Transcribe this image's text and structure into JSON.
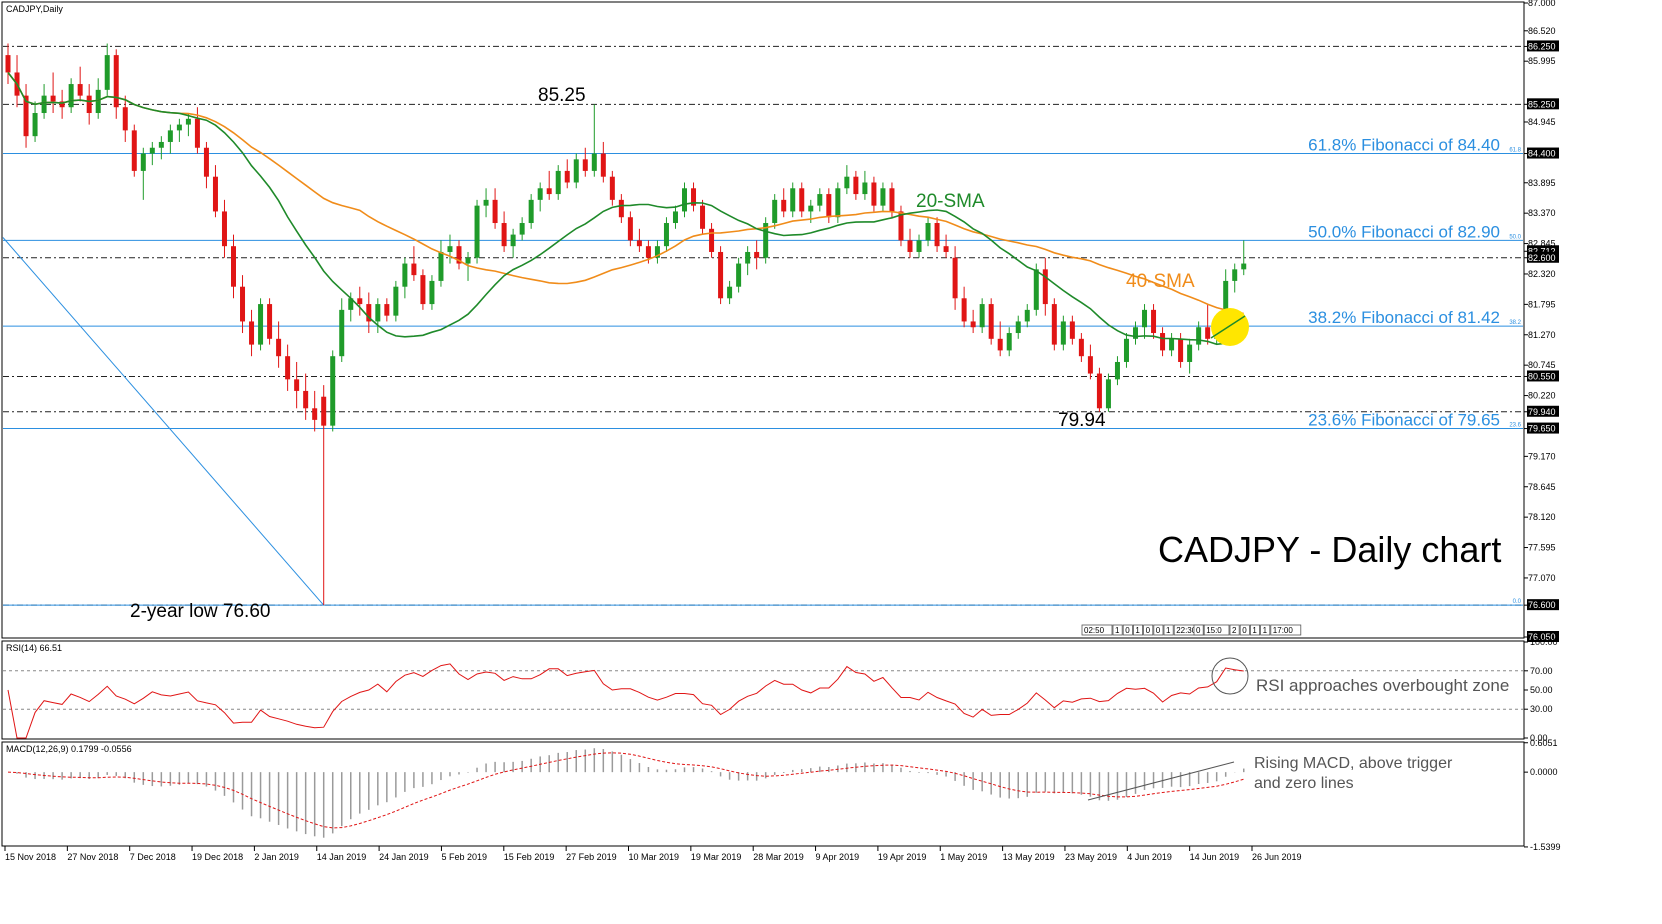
{
  "chart_data": [
    {
      "type": "candlestick",
      "panel": "price",
      "symbol_label": "CADJPY,Daily",
      "title": "CADJPY - Daily chart",
      "ylim": [
        76.05,
        87.0
      ],
      "y_ticks": [
        "87.000",
        "86.520",
        "86.250",
        "85.995",
        "85.250",
        "84.945",
        "84.400",
        "83.895",
        "83.370",
        "82.845",
        "82.712",
        "82.600",
        "82.320",
        "81.795",
        "81.270",
        "80.745",
        "80.550",
        "80.220",
        "79.940",
        "79.650",
        "79.170",
        "78.645",
        "78.120",
        "77.595",
        "77.070",
        "76.600",
        "76.050"
      ],
      "highlight_ticks": [
        "86.250",
        "85.250",
        "84.400",
        "82.712",
        "82.600",
        "80.550",
        "79.940",
        "79.650",
        "76.600",
        "76.050"
      ],
      "x_labels": [
        "15 Nov 2018",
        "27 Nov 2018",
        "7 Dec 2018",
        "19 Dec 2018",
        "2 Jan 2019",
        "14 Jan 2019",
        "24 Jan 2019",
        "5 Feb 2019",
        "15 Feb 2019",
        "27 Feb 2019",
        "10 Mar 2019",
        "19 Mar 2019",
        "28 Mar 2019",
        "9 Apr 2019",
        "19 Apr 2019",
        "1 May 2019",
        "13 May 2019",
        "23 May 2019",
        "4 Jun 2019",
        "14 Jun 2019",
        "26 Jun 2019"
      ],
      "horizontal_levels": [
        86.25,
        85.25,
        84.4,
        82.6,
        80.55,
        79.94,
        76.6
      ],
      "fibonacci": [
        {
          "level": 84.4,
          "label": "61.8% Fibonacci of 84.40",
          "tag": "61.8"
        },
        {
          "level": 82.9,
          "label": "50.0% Fibonacci of 82.90",
          "tag": "50.0"
        },
        {
          "level": 81.42,
          "label": "38.2% Fibonacci of 81.42",
          "tag": "38.2"
        },
        {
          "level": 79.65,
          "label": "23.6% Fibonacci of 79.65",
          "tag": "23.6"
        },
        {
          "level": 76.6,
          "label": "",
          "tag": "0.0"
        }
      ],
      "series": [
        {
          "name": "20-SMA",
          "color": "#1f8a2a"
        },
        {
          "name": "40-SMA",
          "color": "#f08c1a"
        }
      ],
      "annotations": {
        "high": "85.25",
        "low_may": "79.94",
        "low_jan": "2-year low 76.60"
      },
      "colors": {
        "bull": "#1f9b2a",
        "bear": "#e01515",
        "fib": "#2b8fe0",
        "marker": "#ffe600"
      },
      "candles": [
        [
          86.1,
          86.3,
          85.6,
          85.8
        ],
        [
          85.8,
          86.1,
          85.2,
          85.4
        ],
        [
          85.4,
          85.6,
          84.5,
          84.7
        ],
        [
          84.7,
          85.3,
          84.6,
          85.1
        ],
        [
          85.1,
          85.6,
          85.0,
          85.4
        ],
        [
          85.4,
          85.8,
          85.1,
          85.3
        ],
        [
          85.3,
          85.5,
          85.0,
          85.2
        ],
        [
          85.2,
          85.7,
          85.1,
          85.6
        ],
        [
          85.6,
          85.9,
          85.3,
          85.4
        ],
        [
          85.4,
          85.6,
          84.9,
          85.1
        ],
        [
          85.1,
          85.7,
          85.0,
          85.5
        ],
        [
          85.5,
          86.3,
          85.4,
          86.1
        ],
        [
          86.1,
          86.2,
          85.0,
          85.2
        ],
        [
          85.2,
          85.4,
          84.6,
          84.8
        ],
        [
          84.8,
          84.9,
          84.0,
          84.1
        ],
        [
          84.1,
          84.5,
          83.6,
          84.4
        ],
        [
          84.4,
          84.6,
          84.2,
          84.5
        ],
        [
          84.5,
          84.7,
          84.3,
          84.6
        ],
        [
          84.6,
          84.9,
          84.4,
          84.8
        ],
        [
          84.8,
          85.0,
          84.6,
          84.9
        ],
        [
          84.9,
          85.1,
          84.7,
          85.0
        ],
        [
          85.0,
          85.2,
          84.4,
          84.5
        ],
        [
          84.5,
          84.6,
          83.8,
          84.0
        ],
        [
          84.0,
          84.2,
          83.3,
          83.4
        ],
        [
          83.4,
          83.6,
          82.6,
          82.8
        ],
        [
          82.8,
          83.0,
          81.9,
          82.1
        ],
        [
          82.1,
          82.3,
          81.3,
          81.5
        ],
        [
          81.5,
          81.7,
          80.9,
          81.1
        ],
        [
          81.1,
          81.9,
          81.0,
          81.8
        ],
        [
          81.8,
          81.9,
          81.1,
          81.2
        ],
        [
          81.2,
          81.5,
          80.7,
          80.9
        ],
        [
          80.9,
          81.1,
          80.3,
          80.5
        ],
        [
          80.5,
          80.8,
          80.0,
          80.3
        ],
        [
          80.3,
          80.6,
          79.8,
          80.0
        ],
        [
          80.0,
          80.3,
          79.6,
          79.8
        ],
        [
          80.2,
          80.4,
          76.6,
          79.7
        ],
        [
          79.7,
          81.0,
          79.6,
          80.9
        ],
        [
          80.9,
          81.9,
          80.8,
          81.7
        ],
        [
          81.7,
          82.0,
          81.5,
          81.9
        ],
        [
          81.9,
          82.1,
          81.6,
          81.8
        ],
        [
          81.8,
          82.0,
          81.3,
          81.5
        ],
        [
          81.5,
          81.9,
          81.3,
          81.8
        ],
        [
          81.8,
          81.9,
          81.5,
          81.6
        ],
        [
          81.6,
          82.2,
          81.5,
          82.1
        ],
        [
          82.1,
          82.6,
          81.9,
          82.5
        ],
        [
          82.5,
          82.8,
          82.2,
          82.3
        ],
        [
          82.3,
          82.4,
          81.7,
          81.8
        ],
        [
          81.8,
          82.3,
          81.7,
          82.2
        ],
        [
          82.2,
          82.9,
          82.1,
          82.7
        ],
        [
          82.7,
          83.0,
          82.5,
          82.8
        ],
        [
          82.8,
          82.9,
          82.4,
          82.5
        ],
        [
          82.5,
          82.7,
          82.2,
          82.6
        ],
        [
          82.6,
          83.6,
          82.5,
          83.5
        ],
        [
          83.5,
          83.8,
          83.3,
          83.6
        ],
        [
          83.6,
          83.8,
          83.1,
          83.2
        ],
        [
          83.2,
          83.4,
          82.7,
          82.8
        ],
        [
          82.8,
          83.1,
          82.6,
          83.0
        ],
        [
          83.0,
          83.3,
          82.9,
          83.2
        ],
        [
          83.2,
          83.7,
          83.1,
          83.6
        ],
        [
          83.6,
          83.9,
          83.4,
          83.8
        ],
        [
          83.8,
          84.1,
          83.6,
          83.7
        ],
        [
          83.7,
          84.2,
          83.6,
          84.1
        ],
        [
          84.1,
          84.3,
          83.8,
          83.9
        ],
        [
          83.9,
          84.4,
          83.8,
          84.3
        ],
        [
          84.3,
          84.5,
          84.0,
          84.1
        ],
        [
          84.1,
          85.25,
          84.0,
          84.4
        ],
        [
          84.4,
          84.6,
          83.9,
          84.0
        ],
        [
          84.0,
          84.1,
          83.5,
          83.6
        ],
        [
          83.6,
          83.7,
          83.2,
          83.3
        ],
        [
          83.3,
          83.4,
          82.8,
          82.9
        ],
        [
          82.9,
          83.1,
          82.7,
          82.8
        ],
        [
          82.8,
          82.9,
          82.5,
          82.6
        ],
        [
          82.6,
          82.9,
          82.5,
          82.8
        ],
        [
          82.8,
          83.3,
          82.7,
          83.2
        ],
        [
          83.2,
          83.5,
          83.1,
          83.4
        ],
        [
          83.4,
          83.9,
          83.3,
          83.8
        ],
        [
          83.8,
          83.9,
          83.4,
          83.5
        ],
        [
          83.5,
          83.6,
          83.0,
          83.1
        ],
        [
          83.1,
          83.2,
          82.6,
          82.7
        ],
        [
          82.7,
          82.8,
          81.8,
          81.9
        ],
        [
          81.9,
          82.2,
          81.8,
          82.1
        ],
        [
          82.1,
          82.6,
          82.0,
          82.5
        ],
        [
          82.5,
          82.8,
          82.3,
          82.7
        ],
        [
          82.7,
          82.9,
          82.4,
          82.6
        ],
        [
          82.6,
          83.3,
          82.5,
          83.2
        ],
        [
          83.2,
          83.7,
          83.1,
          83.6
        ],
        [
          83.6,
          83.8,
          83.3,
          83.4
        ],
        [
          83.4,
          83.9,
          83.3,
          83.8
        ],
        [
          83.8,
          83.9,
          83.3,
          83.4
        ],
        [
          83.4,
          83.6,
          83.2,
          83.5
        ],
        [
          83.5,
          83.8,
          83.4,
          83.7
        ],
        [
          83.7,
          83.8,
          83.2,
          83.3
        ],
        [
          83.3,
          83.9,
          83.2,
          83.8
        ],
        [
          83.8,
          84.2,
          83.7,
          84.0
        ],
        [
          84.0,
          84.1,
          83.6,
          83.7
        ],
        [
          83.7,
          84.1,
          83.6,
          83.9
        ],
        [
          83.9,
          84.0,
          83.4,
          83.5
        ],
        [
          83.5,
          83.9,
          83.4,
          83.8
        ],
        [
          83.8,
          83.9,
          83.3,
          83.4
        ],
        [
          83.4,
          83.5,
          82.8,
          82.9
        ],
        [
          82.9,
          83.1,
          82.6,
          82.7
        ],
        [
          82.7,
          83.0,
          82.6,
          82.9
        ],
        [
          82.9,
          83.3,
          82.8,
          83.2
        ],
        [
          83.2,
          83.3,
          82.7,
          82.8
        ],
        [
          82.8,
          83.0,
          82.6,
          82.7
        ],
        [
          82.6,
          82.8,
          81.7,
          81.9
        ],
        [
          81.9,
          82.1,
          81.4,
          81.5
        ],
        [
          81.5,
          81.7,
          81.3,
          81.4
        ],
        [
          81.4,
          81.9,
          81.3,
          81.8
        ],
        [
          81.8,
          81.9,
          81.1,
          81.2
        ],
        [
          81.2,
          81.5,
          80.9,
          81.0
        ],
        [
          81.0,
          81.4,
          80.9,
          81.3
        ],
        [
          81.3,
          81.6,
          81.2,
          81.5
        ],
        [
          81.5,
          81.8,
          81.4,
          81.7
        ],
        [
          81.7,
          82.5,
          81.6,
          82.4
        ],
        [
          82.4,
          82.6,
          81.6,
          81.8
        ],
        [
          81.8,
          81.9,
          81.0,
          81.1
        ],
        [
          81.1,
          81.6,
          81.0,
          81.5
        ],
        [
          81.5,
          81.6,
          81.1,
          81.2
        ],
        [
          81.2,
          81.3,
          80.8,
          80.9
        ],
        [
          80.9,
          81.1,
          80.5,
          80.6
        ],
        [
          80.6,
          80.7,
          79.94,
          80.0
        ],
        [
          80.0,
          80.6,
          79.94,
          80.5
        ],
        [
          80.5,
          80.9,
          80.4,
          80.8
        ],
        [
          80.8,
          81.3,
          80.7,
          81.2
        ],
        [
          81.2,
          81.5,
          81.1,
          81.4
        ],
        [
          81.4,
          81.8,
          81.2,
          81.7
        ],
        [
          81.7,
          81.8,
          81.2,
          81.3
        ],
        [
          81.3,
          81.4,
          80.9,
          81.0
        ],
        [
          81.0,
          81.3,
          80.9,
          81.2
        ],
        [
          81.2,
          81.3,
          80.7,
          80.8
        ],
        [
          80.8,
          81.2,
          80.6,
          81.1
        ],
        [
          81.1,
          81.5,
          81.0,
          81.4
        ],
        [
          81.4,
          81.8,
          81.1,
          81.2
        ],
        [
          81.2,
          81.5,
          81.1,
          81.4
        ],
        [
          81.4,
          82.4,
          81.3,
          82.2
        ],
        [
          82.2,
          82.5,
          82.0,
          82.4
        ],
        [
          82.4,
          82.9,
          82.3,
          82.5
        ]
      ]
    },
    {
      "type": "line",
      "panel": "rsi",
      "indicator_label": "RSI(14) 66.51",
      "ylim": [
        0,
        100
      ],
      "y_ticks": [
        "100.00",
        "70.00",
        "50.00",
        "30.00",
        "0.00"
      ],
      "reference_levels": [
        70,
        30
      ],
      "series": [
        {
          "name": "RSI(14)",
          "color": "#e01515"
        }
      ],
      "annotation": "RSI approaches overbought zone"
    },
    {
      "type": "bar",
      "panel": "macd",
      "indicator_label": "MACD(12,26,9) 0.1799 -0.0556",
      "ylim": [
        -1.5,
        0.6
      ],
      "y_ticks": [
        "0.6051",
        "0.0000",
        "-1.5399"
      ],
      "series": [
        {
          "name": "MACD",
          "color": "#9a9a9a"
        },
        {
          "name": "Signal",
          "color": "#e01515"
        }
      ],
      "annotation_line1": "Rising MACD, above trigger",
      "annotation_line2": "and zero lines"
    }
  ],
  "header": {
    "label": "CADJPY,Daily"
  },
  "time_boxes": [
    "02:50",
    "1",
    "0",
    "1",
    "0",
    "0",
    "1",
    "22:30",
    "0",
    "15:0",
    "2",
    "0",
    "1",
    "1",
    "17:00"
  ]
}
